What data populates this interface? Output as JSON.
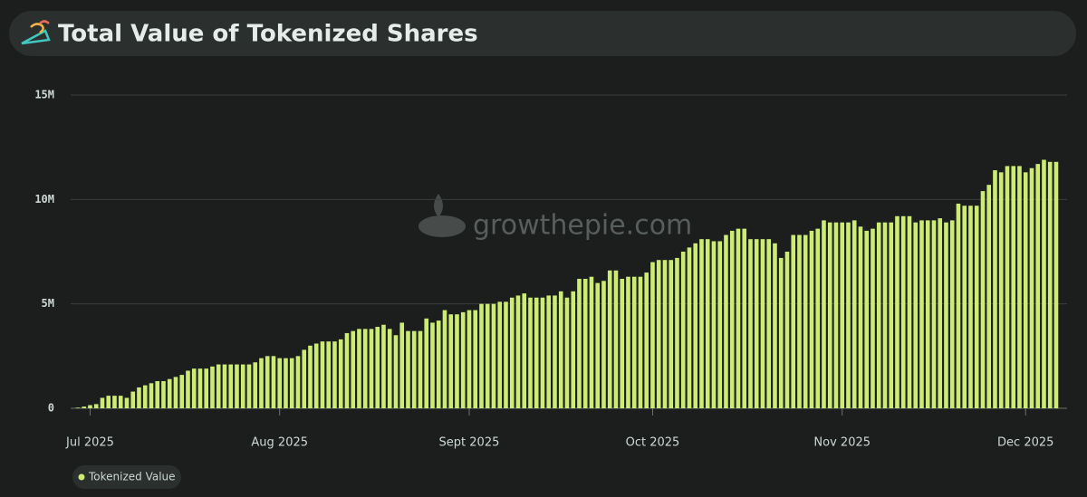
{
  "chart_data": {
    "type": "bar",
    "title": "Total Value of Tokenized Shares",
    "watermark": "growthepie.com",
    "categories": [
      null,
      null,
      "Jul 2025",
      null,
      null,
      null,
      null,
      null,
      null,
      null,
      null,
      null,
      null,
      null,
      null,
      null,
      null,
      null,
      null,
      null,
      null,
      null,
      null,
      null,
      null,
      null,
      null,
      null,
      null,
      null,
      null,
      null,
      null,
      "Aug 2025",
      null,
      null,
      null,
      null,
      null,
      null,
      null,
      null,
      null,
      null,
      null,
      null,
      null,
      null,
      null,
      null,
      null,
      null,
      null,
      null,
      null,
      null,
      null,
      null,
      null,
      null,
      null,
      null,
      null,
      null,
      "Sept 2025",
      null,
      null,
      null,
      null,
      null,
      null,
      null,
      null,
      null,
      null,
      null,
      null,
      null,
      null,
      null,
      null,
      null,
      null,
      null,
      null,
      null,
      null,
      null,
      null,
      null,
      null,
      null,
      null,
      null,
      "Oct 2025",
      null,
      null,
      null,
      null,
      null,
      null,
      null,
      null,
      null,
      null,
      null,
      null,
      null,
      null,
      null,
      null,
      null,
      null,
      null,
      null,
      null,
      null,
      null,
      null,
      null,
      null,
      null,
      null,
      null,
      null,
      "Nov 2025",
      null,
      null,
      null,
      null,
      null,
      null,
      null,
      null,
      null,
      null,
      null,
      null,
      null,
      null,
      null,
      null,
      null,
      null,
      null,
      null,
      null,
      null,
      null,
      null,
      null,
      null,
      null,
      null,
      null,
      "Dec 2025",
      null,
      null,
      null,
      null,
      null
    ],
    "series": [
      {
        "name": "Tokenized Value",
        "color": "#cdec74",
        "values": [
          0.03,
          0.08,
          0.15,
          0.2,
          0.5,
          0.6,
          0.6,
          0.6,
          0.5,
          0.8,
          1.0,
          1.1,
          1.2,
          1.3,
          1.3,
          1.4,
          1.5,
          1.6,
          1.8,
          1.9,
          1.9,
          1.9,
          2.0,
          2.1,
          2.1,
          2.1,
          2.1,
          2.1,
          2.1,
          2.2,
          2.4,
          2.5,
          2.5,
          2.4,
          2.4,
          2.4,
          2.5,
          2.8,
          3.0,
          3.1,
          3.2,
          3.2,
          3.2,
          3.3,
          3.6,
          3.7,
          3.8,
          3.8,
          3.8,
          3.9,
          4.0,
          3.8,
          3.5,
          4.1,
          3.7,
          3.7,
          3.7,
          4.3,
          4.1,
          4.2,
          4.7,
          4.5,
          4.5,
          4.6,
          4.7,
          4.7,
          5.0,
          5.0,
          5.0,
          5.1,
          5.1,
          5.3,
          5.4,
          5.5,
          5.3,
          5.3,
          5.3,
          5.4,
          5.4,
          5.6,
          5.3,
          5.6,
          6.2,
          6.2,
          6.3,
          6.0,
          6.1,
          6.6,
          6.6,
          6.2,
          6.3,
          6.3,
          6.3,
          6.5,
          7.0,
          7.1,
          7.1,
          7.1,
          7.2,
          7.5,
          7.7,
          7.9,
          8.1,
          8.1,
          8.0,
          8.0,
          8.3,
          8.5,
          8.6,
          8.6,
          8.1,
          8.1,
          8.1,
          8.1,
          7.9,
          7.2,
          7.5,
          8.3,
          8.3,
          8.3,
          8.5,
          8.6,
          9.0,
          8.9,
          8.9,
          8.9,
          8.9,
          9.0,
          8.7,
          8.5,
          8.6,
          8.9,
          8.9,
          8.9,
          9.2,
          9.2,
          9.2,
          8.9,
          9.0,
          9.0,
          9.0,
          9.1,
          8.9,
          9.0,
          9.8,
          9.7,
          9.7,
          9.7,
          10.4,
          10.7,
          11.4,
          11.3,
          11.6,
          11.6,
          11.6,
          11.3,
          11.5,
          11.7,
          11.9,
          11.8,
          11.8
        ]
      }
    ],
    "ylim": [
      0,
      15
    ],
    "yticks": [
      0,
      {
        "value": 5,
        "label": "5M"
      },
      {
        "value": 10,
        "label": "10M"
      },
      {
        "value": 15,
        "label": "15M"
      }
    ],
    "grid": true
  }
}
